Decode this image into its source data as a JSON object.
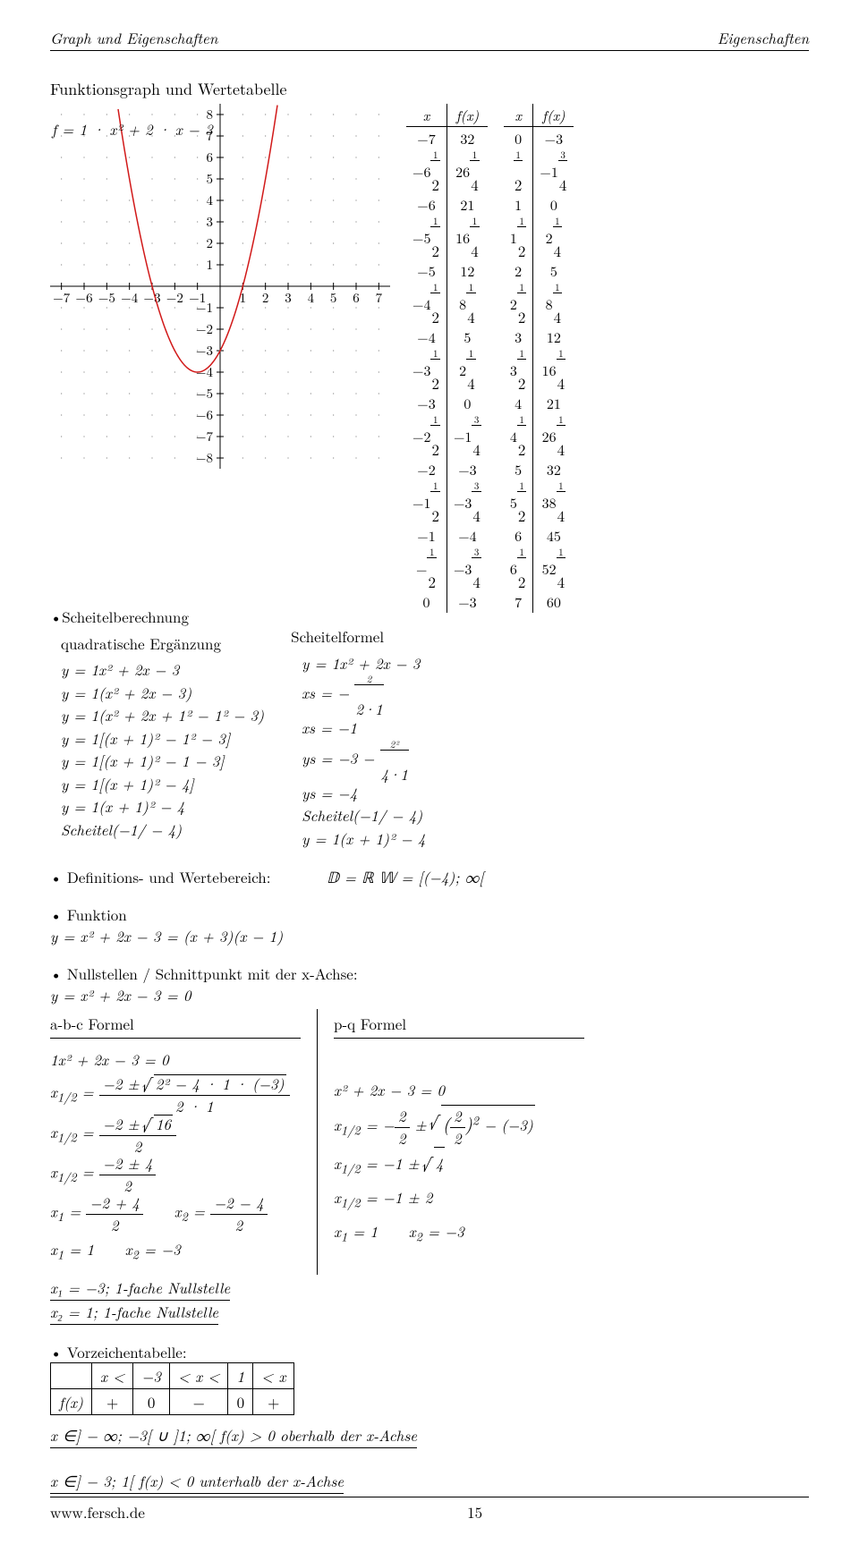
{
  "header": {
    "left": "Graph und Eigenschaften",
    "right": "Eigenschaften"
  },
  "section_title": "Funktionsgraph und Wertetabelle",
  "func_label": "f = 1 · x² + 2 · x − 3",
  "chart": {
    "type": "line",
    "background_color": "#ffffff",
    "grid_color": "#808080",
    "curve_color": "#d11919",
    "curve_width": 1.5,
    "axis_color": "#000000",
    "xlim": [
      -7.5,
      7.5
    ],
    "ylim": [
      -8.5,
      8.5
    ],
    "xticks": [
      -7,
      -6,
      -5,
      -4,
      -3,
      -2,
      -1,
      1,
      2,
      3,
      4,
      5,
      6,
      7
    ],
    "yticks": [
      -8,
      -7,
      -6,
      -5,
      -4,
      -3,
      -2,
      -1,
      1,
      2,
      3,
      4,
      5,
      6,
      7,
      8
    ],
    "tick_fontsize": 15,
    "dotgrid_radius": 0.6
  },
  "table1_header": [
    "x",
    "f(x)"
  ],
  "table1": [
    [
      "−7",
      "32"
    ],
    [
      "−6½",
      "26¼"
    ],
    [
      "−6",
      "21"
    ],
    [
      "−5½",
      "16¼"
    ],
    [
      "−5",
      "12"
    ],
    [
      "−4½",
      "8¼"
    ],
    [
      "−4",
      "5"
    ],
    [
      "−3½",
      "2¼"
    ],
    [
      "−3",
      "0"
    ],
    [
      "−2½",
      "−1¾"
    ],
    [
      "−2",
      "−3"
    ],
    [
      "−1½",
      "−3¾"
    ],
    [
      "−1",
      "−4"
    ],
    [
      "−½",
      "−3¾"
    ],
    [
      "0",
      "−3"
    ]
  ],
  "table2_header": [
    "x",
    "f(x)"
  ],
  "table2": [
    [
      "0",
      "−3"
    ],
    [
      "½",
      "−1¾"
    ],
    [
      "1",
      "0"
    ],
    [
      "1½",
      "2¼"
    ],
    [
      "2",
      "5"
    ],
    [
      "2½",
      "8¼"
    ],
    [
      "3",
      "12"
    ],
    [
      "3½",
      "16¼"
    ],
    [
      "4",
      "21"
    ],
    [
      "4½",
      "26¼"
    ],
    [
      "5",
      "32"
    ],
    [
      "5½",
      "38¼"
    ],
    [
      "6",
      "45"
    ],
    [
      "6½",
      "52¼"
    ],
    [
      "7",
      "60"
    ]
  ],
  "deriv_left": {
    "title_a": "Scheitelberechnung",
    "title_b": "quadratische Ergänzung",
    "lines": [
      "y = 1x² + 2x − 3",
      "y = 1(x² + 2x − 3)",
      "y = 1(x² + 2x + 1² − 1² − 3)",
      "y = 1[(x + 1)² − 1² − 3]",
      "y = 1[(x + 1)² − 1 − 3]",
      "y = 1[(x + 1)² − 4]",
      "y = 1(x + 1)² − 4",
      "Scheitel(−1/ − 4)"
    ]
  },
  "deriv_right": {
    "title": "Scheitelformel",
    "lines": [
      "y = 1x² + 2x − 3",
      "xs = − 2 ⁄ 2·1",
      "xs = −1",
      "ys = −3 − 2² ⁄ 4·1",
      "ys = −4",
      "Scheitel(−1/ − 4)",
      "y = 1(x + 1)² − 4"
    ]
  },
  "defbereich": "• Definitions- und Wertebereich:",
  "defbereich_val": "𝔻 = ℝ        𝕎 = [(−4); ∞[",
  "funktion": {
    "label": "• Funktion",
    "line": "y = x² + 2x − 3 = (x + 3)(x − 1)"
  },
  "null_header": "• Nullstellen / Schnittpunkt mit der x-Achse:",
  "null_eq": "y = x² + 2x − 3 = 0",
  "abc": {
    "title": "a-b-c Formel",
    "lines": [
      "1x² + 2x − 3 = 0",
      "x₁/₂ = (−2 ± √(2² − 4 · 1 · (−3))) / (2 · 1)",
      "x₁/₂ = (−2 ± √16) / 2",
      "x₁/₂ = (−2 ± 4) / 2",
      "x₁ = (−2 + 4)/2    x₂ = (−2 − 4)/2",
      "x₁ = 1    x₂ = −3"
    ]
  },
  "pq": {
    "title": "p-q Formel",
    "lines": [
      "x² + 2x − 3 = 0",
      "x₁/₂ = −2/2 ± √((2/2)² − (−3))",
      "x₁/₂ = −1 ± √4",
      "x₁/₂ = −1 ± 2",
      "x₁ = 1    x₂ = −3"
    ]
  },
  "null_foot": [
    "x₁ = −3;   1-fache Nullstelle",
    "x₂ = 1;   1-fache Nullstelle"
  ],
  "vorzeichen": {
    "label": "• Vorzeichentabelle:",
    "cols": [
      "x <",
      "−3",
      "< x <",
      "1",
      "< x"
    ],
    "row_label": "f(x)",
    "row_vals": [
      "+",
      "0",
      "−",
      "0",
      "+"
    ],
    "line1": "x ∈] − ∞; −3[   ∪   ]1; ∞[    f(x) > 0   oberhalb der x-Achse",
    "line2": "x ∈] − 3; 1[    f(x) < 0   unterhalb der x-Achse"
  },
  "footer": {
    "left": "www.fersch.de",
    "page": "15"
  }
}
